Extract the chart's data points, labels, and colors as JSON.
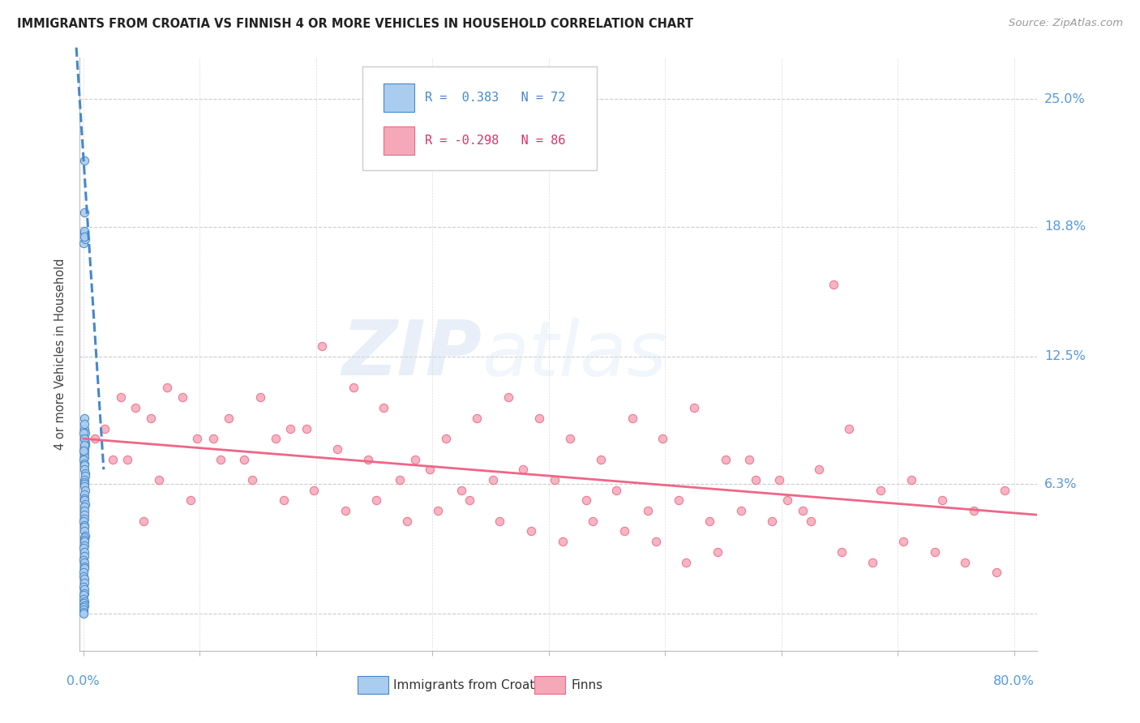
{
  "title": "IMMIGRANTS FROM CROATIA VS FINNISH 4 OR MORE VEHICLES IN HOUSEHOLD CORRELATION CHART",
  "source": "Source: ZipAtlas.com",
  "ylabel": "4 or more Vehicles in Household",
  "color_croatia": "#aaccee",
  "color_croatia_line": "#4488cc",
  "color_finns": "#f5a8b8",
  "color_finns_line": "#ee6688",
  "color_labels": "#5599dd",
  "ytick_vals": [
    0.0,
    0.063,
    0.125,
    0.188,
    0.25
  ],
  "ytick_labels": [
    "",
    "6.3%",
    "12.5%",
    "18.8%",
    "25.0%"
  ],
  "xlim_min": -0.003,
  "xlim_max": 0.82,
  "ylim_min": -0.018,
  "ylim_max": 0.27,
  "croatia_x": [
    0.0008,
    0.001,
    0.0005,
    0.0012,
    0.0015,
    0.0007,
    0.0009,
    0.0011,
    0.0013,
    0.0006,
    0.0014,
    0.0016,
    0.0008,
    0.001,
    0.0012,
    0.0005,
    0.0007,
    0.0009,
    0.0011,
    0.0013,
    0.0015,
    0.0006,
    0.0008,
    0.001,
    0.0012,
    0.0014,
    0.0007,
    0.0009,
    0.0011,
    0.0013,
    0.0006,
    0.0008,
    0.001,
    0.0012,
    0.0005,
    0.0007,
    0.0009,
    0.0011,
    0.0013,
    0.0006,
    0.0008,
    0.001,
    0.0012,
    0.0005,
    0.0007,
    0.0009,
    0.0004,
    0.0006,
    0.0008,
    0.001,
    0.0003,
    0.0005,
    0.0007,
    0.0009,
    0.0004,
    0.0006,
    0.0008,
    0.0003,
    0.0005,
    0.0007,
    0.0004,
    0.0006,
    0.0003,
    0.0005,
    0.0004,
    0.0003,
    0.0006,
    0.0008,
    0.0005,
    0.0007,
    0.0009,
    0.0004
  ],
  "croatia_y": [
    0.22,
    0.195,
    0.18,
    0.185,
    0.182,
    0.186,
    0.183,
    0.09,
    0.088,
    0.085,
    0.083,
    0.082,
    0.08,
    0.078,
    0.076,
    0.075,
    0.073,
    0.072,
    0.07,
    0.068,
    0.067,
    0.065,
    0.064,
    0.063,
    0.062,
    0.06,
    0.058,
    0.056,
    0.055,
    0.053,
    0.052,
    0.05,
    0.048,
    0.046,
    0.045,
    0.043,
    0.042,
    0.04,
    0.038,
    0.037,
    0.036,
    0.035,
    0.033,
    0.032,
    0.03,
    0.028,
    0.026,
    0.025,
    0.023,
    0.022,
    0.02,
    0.018,
    0.017,
    0.015,
    0.013,
    0.012,
    0.01,
    0.009,
    0.007,
    0.006,
    0.005,
    0.004,
    0.003,
    0.002,
    0.001,
    0.0,
    0.095,
    0.092,
    0.088,
    0.085,
    0.082,
    0.079
  ],
  "finns_x": [
    0.018,
    0.045,
    0.072,
    0.098,
    0.125,
    0.152,
    0.178,
    0.205,
    0.232,
    0.258,
    0.285,
    0.312,
    0.338,
    0.365,
    0.392,
    0.418,
    0.445,
    0.472,
    0.498,
    0.525,
    0.552,
    0.578,
    0.605,
    0.632,
    0.658,
    0.685,
    0.712,
    0.738,
    0.765,
    0.792,
    0.032,
    0.058,
    0.085,
    0.112,
    0.138,
    0.165,
    0.192,
    0.218,
    0.245,
    0.272,
    0.298,
    0.325,
    0.352,
    0.378,
    0.405,
    0.432,
    0.458,
    0.485,
    0.512,
    0.538,
    0.565,
    0.592,
    0.618,
    0.645,
    0.01,
    0.038,
    0.065,
    0.092,
    0.118,
    0.145,
    0.172,
    0.198,
    0.225,
    0.252,
    0.278,
    0.305,
    0.332,
    0.358,
    0.385,
    0.412,
    0.438,
    0.465,
    0.492,
    0.518,
    0.545,
    0.572,
    0.598,
    0.625,
    0.652,
    0.678,
    0.705,
    0.732,
    0.758,
    0.785,
    0.025,
    0.052
  ],
  "finns_y": [
    0.09,
    0.1,
    0.11,
    0.085,
    0.095,
    0.105,
    0.09,
    0.13,
    0.11,
    0.1,
    0.075,
    0.085,
    0.095,
    0.105,
    0.095,
    0.085,
    0.075,
    0.095,
    0.085,
    0.1,
    0.075,
    0.065,
    0.055,
    0.07,
    0.09,
    0.06,
    0.065,
    0.055,
    0.05,
    0.06,
    0.105,
    0.095,
    0.105,
    0.085,
    0.075,
    0.085,
    0.09,
    0.08,
    0.075,
    0.065,
    0.07,
    0.06,
    0.065,
    0.07,
    0.065,
    0.055,
    0.06,
    0.05,
    0.055,
    0.045,
    0.05,
    0.045,
    0.05,
    0.16,
    0.085,
    0.075,
    0.065,
    0.055,
    0.075,
    0.065,
    0.055,
    0.06,
    0.05,
    0.055,
    0.045,
    0.05,
    0.055,
    0.045,
    0.04,
    0.035,
    0.045,
    0.04,
    0.035,
    0.025,
    0.03,
    0.075,
    0.065,
    0.045,
    0.03,
    0.025,
    0.035,
    0.03,
    0.025,
    0.02,
    0.075,
    0.045
  ],
  "croatia_trend_x": [
    -0.006,
    0.0175
  ],
  "croatia_trend_y": [
    0.275,
    0.07
  ],
  "finns_trend_x": [
    0.0,
    0.82
  ],
  "finns_trend_y": [
    0.085,
    0.048
  ]
}
